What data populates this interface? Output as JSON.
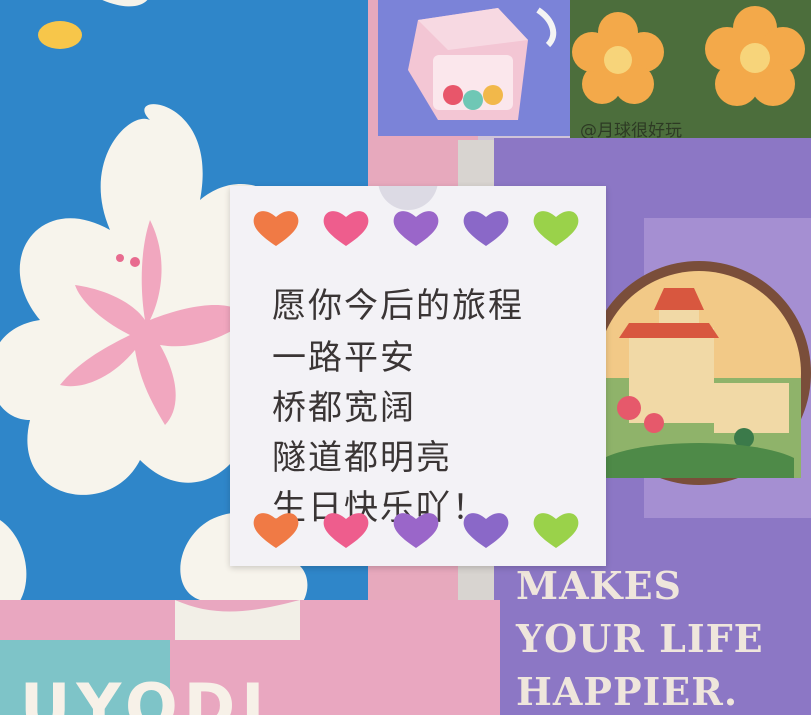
{
  "note": {
    "lines": [
      "愿你今后的旅程",
      "一路平安",
      "桥都宽阔",
      "隧道都明亮",
      "生日快乐吖！"
    ]
  },
  "poster": {
    "lines": [
      "MAKES",
      "YOUR LIFE",
      "HAPPIER."
    ]
  },
  "credit": "@月球很好玩",
  "bottom_text": "UYODI",
  "colors": {
    "heart_orange": "#f07a45",
    "heart_pink": "#ee5d8d",
    "heart_purple": "#9a66c9",
    "heart_violet": "#8a68c8",
    "heart_green": "#9ad24a"
  }
}
